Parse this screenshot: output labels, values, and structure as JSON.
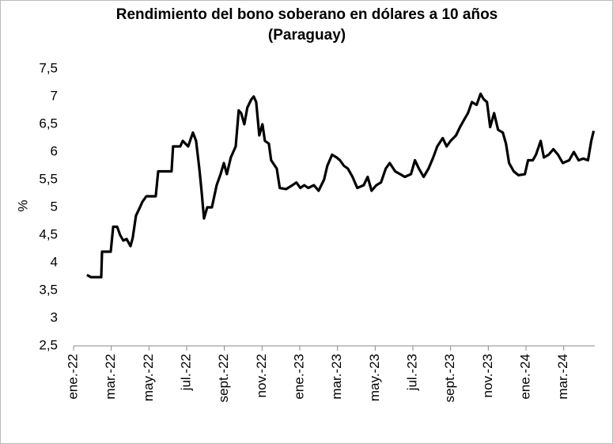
{
  "chart_data": {
    "type": "line",
    "title": "Rendimiento del bono soberano en dólares a 10 años",
    "subtitle": "(Paraguay)",
    "y_label": "%",
    "x": [
      0.71,
      0.92,
      1.47,
      1.51,
      1.97,
      2.1,
      2.31,
      2.47,
      2.64,
      2.81,
      3.02,
      3.14,
      3.31,
      3.52,
      3.65,
      3.86,
      4.36,
      4.49,
      5.2,
      5.28,
      5.66,
      5.79,
      6.08,
      6.33,
      6.5,
      6.67,
      6.79,
      6.92,
      7.09,
      7.34,
      7.59,
      7.8,
      7.97,
      8.13,
      8.34,
      8.6,
      8.76,
      8.89,
      9.06,
      9.22,
      9.43,
      9.56,
      9.69,
      9.85,
      10.02,
      10.15,
      10.36,
      10.48,
      10.78,
      10.94,
      11.28,
      11.61,
      11.82,
      12.03,
      12.24,
      12.45,
      12.75,
      13.0,
      13.29,
      13.46,
      13.71,
      13.96,
      14.13,
      14.34,
      14.55,
      14.8,
      15.05,
      15.39,
      15.6,
      15.81,
      16.06,
      16.31,
      16.56,
      16.77,
      17.06,
      17.32,
      17.57,
      17.9,
      18.11,
      18.32,
      18.57,
      18.83,
      19.08,
      19.29,
      19.58,
      19.79,
      20.0,
      20.29,
      20.5,
      20.75,
      20.92,
      21.13,
      21.38,
      21.59,
      21.76,
      21.93,
      22.1,
      22.31,
      22.52,
      22.77,
      22.94,
      23.1,
      23.35,
      23.6,
      23.94,
      24.11,
      24.36,
      24.53,
      24.78,
      24.95,
      25.2,
      25.45,
      25.7,
      25.95,
      26.29,
      26.54,
      26.79,
      27.04,
      27.29,
      27.46,
      27.59
    ],
    "series": [
      {
        "name": "Rendimiento",
        "color": "#000000",
        "values": [
          3.78,
          3.74,
          3.74,
          4.2,
          4.2,
          4.65,
          4.65,
          4.5,
          4.4,
          4.43,
          4.3,
          4.45,
          4.85,
          5.0,
          5.1,
          5.2,
          5.2,
          5.65,
          5.65,
          6.1,
          6.1,
          6.2,
          6.1,
          6.35,
          6.2,
          5.7,
          5.3,
          4.8,
          5.0,
          5.0,
          5.4,
          5.6,
          5.8,
          5.6,
          5.9,
          6.1,
          6.75,
          6.7,
          6.5,
          6.8,
          6.95,
          7.0,
          6.9,
          6.3,
          6.5,
          6.2,
          6.15,
          5.85,
          5.7,
          5.35,
          5.33,
          5.4,
          5.45,
          5.35,
          5.4,
          5.35,
          5.4,
          5.3,
          5.5,
          5.75,
          5.95,
          5.9,
          5.85,
          5.75,
          5.7,
          5.55,
          5.35,
          5.4,
          5.55,
          5.3,
          5.4,
          5.45,
          5.7,
          5.8,
          5.65,
          5.6,
          5.55,
          5.6,
          5.85,
          5.7,
          5.55,
          5.7,
          5.9,
          6.1,
          6.25,
          6.1,
          6.2,
          6.3,
          6.45,
          6.6,
          6.7,
          6.9,
          6.85,
          7.05,
          6.95,
          6.9,
          6.45,
          6.7,
          6.4,
          6.35,
          6.15,
          5.8,
          5.65,
          5.58,
          5.6,
          5.85,
          5.85,
          5.95,
          6.2,
          5.9,
          5.95,
          6.05,
          5.95,
          5.8,
          5.85,
          6.0,
          5.85,
          5.88,
          5.85,
          6.2,
          6.38
        ]
      }
    ],
    "xlim": [
      0,
      27.65
    ],
    "xticks": [
      {
        "value": 0,
        "label": "ene.-22"
      },
      {
        "value": 2,
        "label": "mar.-22"
      },
      {
        "value": 4,
        "label": "may.-22"
      },
      {
        "value": 6,
        "label": "jul.-22"
      },
      {
        "value": 8,
        "label": "sept.-22"
      },
      {
        "value": 10,
        "label": "nov.-22"
      },
      {
        "value": 12,
        "label": "ene.-23"
      },
      {
        "value": 14,
        "label": "mar.-23"
      },
      {
        "value": 16,
        "label": "may.-23"
      },
      {
        "value": 18,
        "label": "jul.-23"
      },
      {
        "value": 20,
        "label": "sept.-23"
      },
      {
        "value": 22,
        "label": "nov.-23"
      },
      {
        "value": 24,
        "label": "ene.-24"
      },
      {
        "value": 26,
        "label": "mar.-24"
      }
    ],
    "ylim": [
      2.5,
      7.5
    ],
    "yticks": [
      {
        "value": 2.5,
        "label": "2,5"
      },
      3,
      {
        "value": 3.5,
        "label": "3,5"
      },
      4,
      {
        "value": 4.5,
        "label": "4,5"
      },
      5,
      {
        "value": 5.5,
        "label": "5,5"
      },
      6,
      {
        "value": 6.5,
        "label": "6,5"
      },
      7,
      {
        "value": 7.5,
        "label": "7,5"
      }
    ],
    "grid": false
  }
}
